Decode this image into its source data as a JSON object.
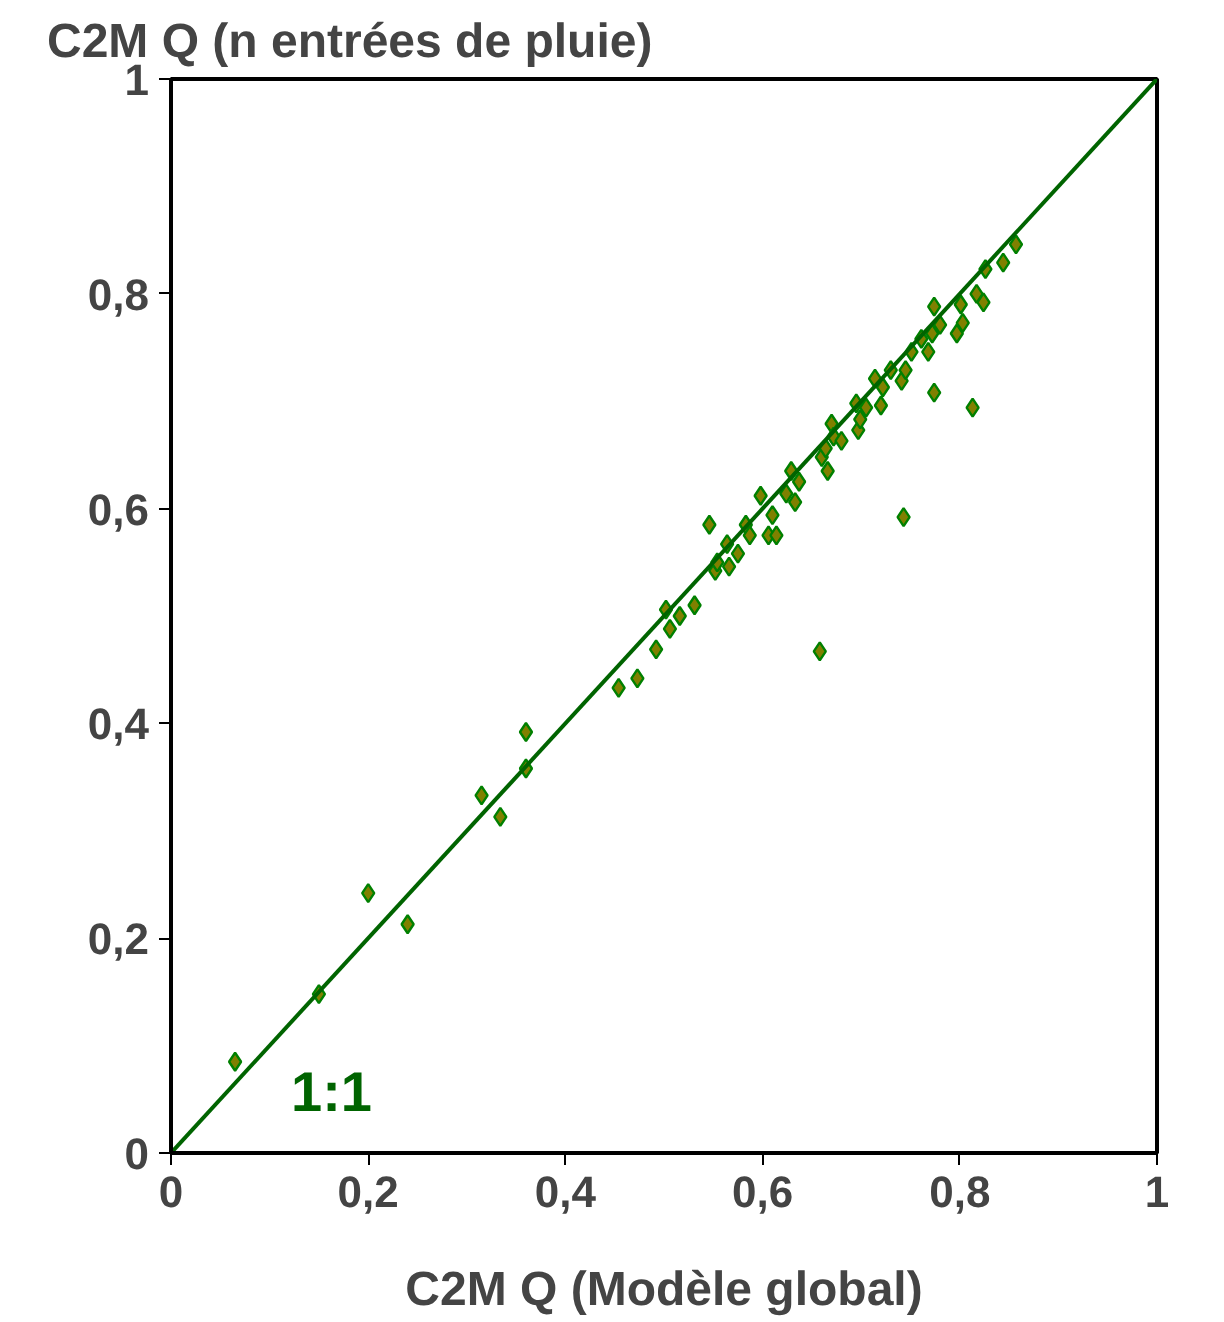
{
  "chart_data": {
    "type": "scatter",
    "ylabel": "C2M Q (n entrées de pluie)",
    "xlabel": "C2M Q (Modèle global)",
    "xlim": [
      0,
      1
    ],
    "ylim": [
      0,
      1
    ],
    "xticks": [
      0,
      {
        "value": 0.2,
        "label": "0,2"
      },
      {
        "value": 0.4,
        "label": "0,4"
      },
      {
        "value": 0.6,
        "label": "0,6"
      },
      {
        "value": 0.8,
        "label": "0,8"
      },
      1
    ],
    "yticks": [
      0,
      {
        "value": 0.2,
        "label": "0,2"
      },
      {
        "value": 0.4,
        "label": "0,4"
      },
      {
        "value": 0.6,
        "label": "0,6"
      },
      {
        "value": 0.8,
        "label": "0,8"
      },
      1
    ],
    "grid": false,
    "annotations": [
      "1:1"
    ],
    "series": [
      {
        "marker": "diamond",
        "color": "#808000",
        "x": [
          0.065,
          0.15,
          0.2,
          0.24,
          0.315,
          0.334,
          0.36,
          0.36,
          0.454,
          0.473,
          0.492,
          0.506,
          0.502,
          0.516,
          0.531,
          0.546,
          0.552,
          0.554,
          0.564,
          0.566,
          0.575,
          0.583,
          0.587,
          0.598,
          0.606,
          0.61,
          0.614,
          0.624,
          0.629,
          0.633,
          0.637,
          0.658,
          0.66,
          0.664,
          0.666,
          0.67,
          0.672,
          0.68,
          0.695,
          0.697,
          0.699,
          0.705,
          0.714,
          0.72,
          0.722,
          0.73,
          0.743,
          0.741,
          0.745,
          0.751,
          0.761,
          0.768,
          0.772,
          0.774,
          0.774,
          0.78,
          0.797,
          0.801,
          0.803,
          0.813,
          0.817,
          0.824,
          0.826,
          0.844,
          0.857
        ],
        "values": [
          0.085,
          0.148,
          0.242,
          0.213,
          0.333,
          0.313,
          0.392,
          0.358,
          0.433,
          0.442,
          0.469,
          0.488,
          0.506,
          0.5,
          0.51,
          0.585,
          0.542,
          0.55,
          0.567,
          0.546,
          0.558,
          0.585,
          0.575,
          0.612,
          0.575,
          0.594,
          0.575,
          0.614,
          0.635,
          0.606,
          0.625,
          0.467,
          0.648,
          0.656,
          0.635,
          0.679,
          0.667,
          0.663,
          0.698,
          0.673,
          0.683,
          0.694,
          0.721,
          0.696,
          0.713,
          0.729,
          0.592,
          0.719,
          0.729,
          0.746,
          0.758,
          0.746,
          0.763,
          0.708,
          0.788,
          0.771,
          0.763,
          0.79,
          0.773,
          0.694,
          0.8,
          0.792,
          0.823,
          0.829,
          0.846
        ]
      },
      {
        "type": "line",
        "color": "#006400",
        "x": [
          0,
          1
        ],
        "values": [
          0,
          1
        ]
      }
    ]
  }
}
